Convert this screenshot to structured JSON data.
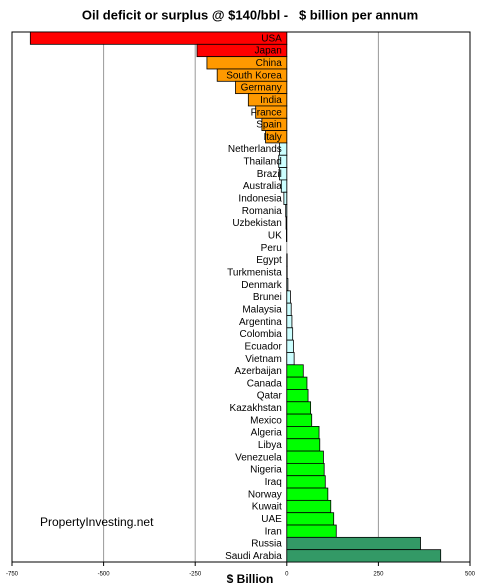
{
  "chart_data": {
    "type": "hbar",
    "title": "Oil deficit or surplus @ $140/bbl -   $ billion per annum",
    "x_label": "$ Billion",
    "annotation": "PropertyInvesting.net",
    "categories": [
      "USA",
      "Japan",
      "China",
      "South Korea",
      "Germany",
      "India",
      "France",
      "Spain",
      "Italy",
      "Netherlands",
      "Thailand",
      "Brazil",
      "Australia",
      "Indonesia",
      "Romania",
      "Uzbekistan",
      "UK",
      "Peru",
      "Egypt",
      "Turkmenista",
      "Denmark",
      "Brunei",
      "Malaysia",
      "Argentina",
      "Colombia",
      "Ecuador",
      "Vietnam",
      "Azerbaijan",
      "Canada",
      "Qatar",
      "Kazakhstan",
      "Mexico",
      "Algeria",
      "Libya",
      "Venezuela",
      "Nigeria",
      "Iraq",
      "Norway",
      "Kuwait",
      "UAE",
      "Iran",
      "Russia",
      "Saudi Arabia"
    ],
    "values": [
      -700,
      -245,
      -218,
      -190,
      -140,
      -105,
      -85,
      -68,
      -58,
      -20,
      -22,
      -20,
      -15,
      -8,
      -3,
      -2,
      -1,
      0,
      1,
      1,
      3,
      10,
      12,
      14,
      16,
      18,
      20,
      45,
      55,
      58,
      65,
      68,
      88,
      90,
      100,
      102,
      105,
      112,
      120,
      128,
      135,
      365,
      420
    ],
    "colors": [
      "#ff0000",
      "#ff0000",
      "#ff9900",
      "#ff9900",
      "#ff9900",
      "#ff9900",
      "#ff9900",
      "#ff9900",
      "#ff9900",
      "#ccffff",
      "#ccffff",
      "#ccffff",
      "#ccffff",
      "#ccffff",
      "#ccffff",
      "#ccffff",
      "#ccffff",
      "#ccffff",
      "#ccffff",
      "#ccffff",
      "#ccffff",
      "#ccffff",
      "#ccffff",
      "#ccffff",
      "#ccffff",
      "#ccffff",
      "#ccffff",
      "#00ff00",
      "#00ff00",
      "#00ff00",
      "#00ff00",
      "#00ff00",
      "#00ff00",
      "#00ff00",
      "#00ff00",
      "#00ff00",
      "#00ff00",
      "#00ff00",
      "#00ff00",
      "#00ff00",
      "#00ff00",
      "#339966",
      "#339966"
    ],
    "xlim": [
      -750,
      500
    ],
    "xticks": [
      -750,
      -500,
      -250,
      0,
      250,
      500
    ],
    "grid": true
  }
}
